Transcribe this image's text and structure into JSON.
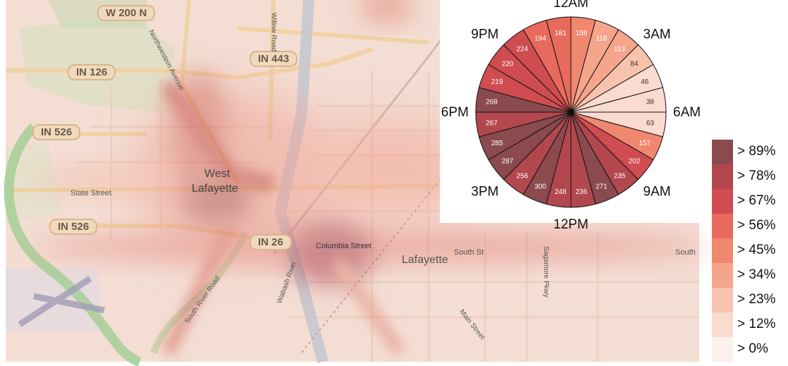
{
  "map": {
    "labels": {
      "road_w200n": "W 200  N",
      "road_in126": "IN 126",
      "road_in443": "IN 443",
      "road_in526_top": "IN 526",
      "road_in526_bottom": "IN 526",
      "road_in26": "IN 26",
      "city_west_lafayette_1": "West",
      "city_west_lafayette_2": "Lafayette",
      "city_lafayette": "Lafayette",
      "street_state": "State Street",
      "street_columbia": "Columbia Street",
      "street_south_st": "South St",
      "street_south_river": "South River Road",
      "street_main": "Main Street",
      "street_sagamore": "Sagamore Pkwy",
      "street_northwestern": "Northwestern Avenue",
      "street_willow": "Willow Road",
      "river_wabash": "Wabash River",
      "edge_south": "South"
    }
  },
  "chart_data": {
    "type": "pie",
    "title": "",
    "unit_note": "",
    "slices": [
      {
        "hour": 0,
        "value": 158
      },
      {
        "hour": 1,
        "value": 118
      },
      {
        "hour": 2,
        "value": 113
      },
      {
        "hour": 3,
        "value": 84
      },
      {
        "hour": 4,
        "value": 46
      },
      {
        "hour": 5,
        "value": 38
      },
      {
        "hour": 6,
        "value": 63
      },
      {
        "hour": 7,
        "value": 157
      },
      {
        "hour": 8,
        "value": 202
      },
      {
        "hour": 9,
        "value": 235
      },
      {
        "hour": 10,
        "value": 271
      },
      {
        "hour": 11,
        "value": 236
      },
      {
        "hour": 12,
        "value": 248
      },
      {
        "hour": 13,
        "value": 300
      },
      {
        "hour": 14,
        "value": 256
      },
      {
        "hour": 15,
        "value": 287
      },
      {
        "hour": 16,
        "value": 285
      },
      {
        "hour": 17,
        "value": 267
      },
      {
        "hour": 18,
        "value": 268
      },
      {
        "hour": 19,
        "value": 219
      },
      {
        "hour": 20,
        "value": 220
      },
      {
        "hour": 21,
        "value": 224
      },
      {
        "hour": 22,
        "value": 194
      },
      {
        "hour": 23,
        "value": 181
      }
    ],
    "clock_labels": [
      {
        "hour": 0,
        "text": "12AM"
      },
      {
        "hour": 3,
        "text": "3AM"
      },
      {
        "hour": 6,
        "text": "6AM"
      },
      {
        "hour": 9,
        "text": "9AM"
      },
      {
        "hour": 12,
        "text": "12PM"
      },
      {
        "hour": 15,
        "text": "3PM"
      },
      {
        "hour": 18,
        "text": "6PM"
      },
      {
        "hour": 21,
        "text": "9PM"
      }
    ],
    "legend": {
      "entries": [
        {
          "label": "> 89%",
          "color": "#8b4a4e"
        },
        {
          "label": "> 78%",
          "color": "#b3474e"
        },
        {
          "label": "> 67%",
          "color": "#cf4c50"
        },
        {
          "label": "> 56%",
          "color": "#e86a5c"
        },
        {
          "label": "> 45%",
          "color": "#f0876f"
        },
        {
          "label": "> 34%",
          "color": "#f5a58c"
        },
        {
          "label": "> 23%",
          "color": "#f8c3ad"
        },
        {
          "label": "> 12%",
          "color": "#fadbd0"
        },
        {
          "label": "> 0%",
          "color": "#fcf0ec"
        }
      ]
    }
  }
}
